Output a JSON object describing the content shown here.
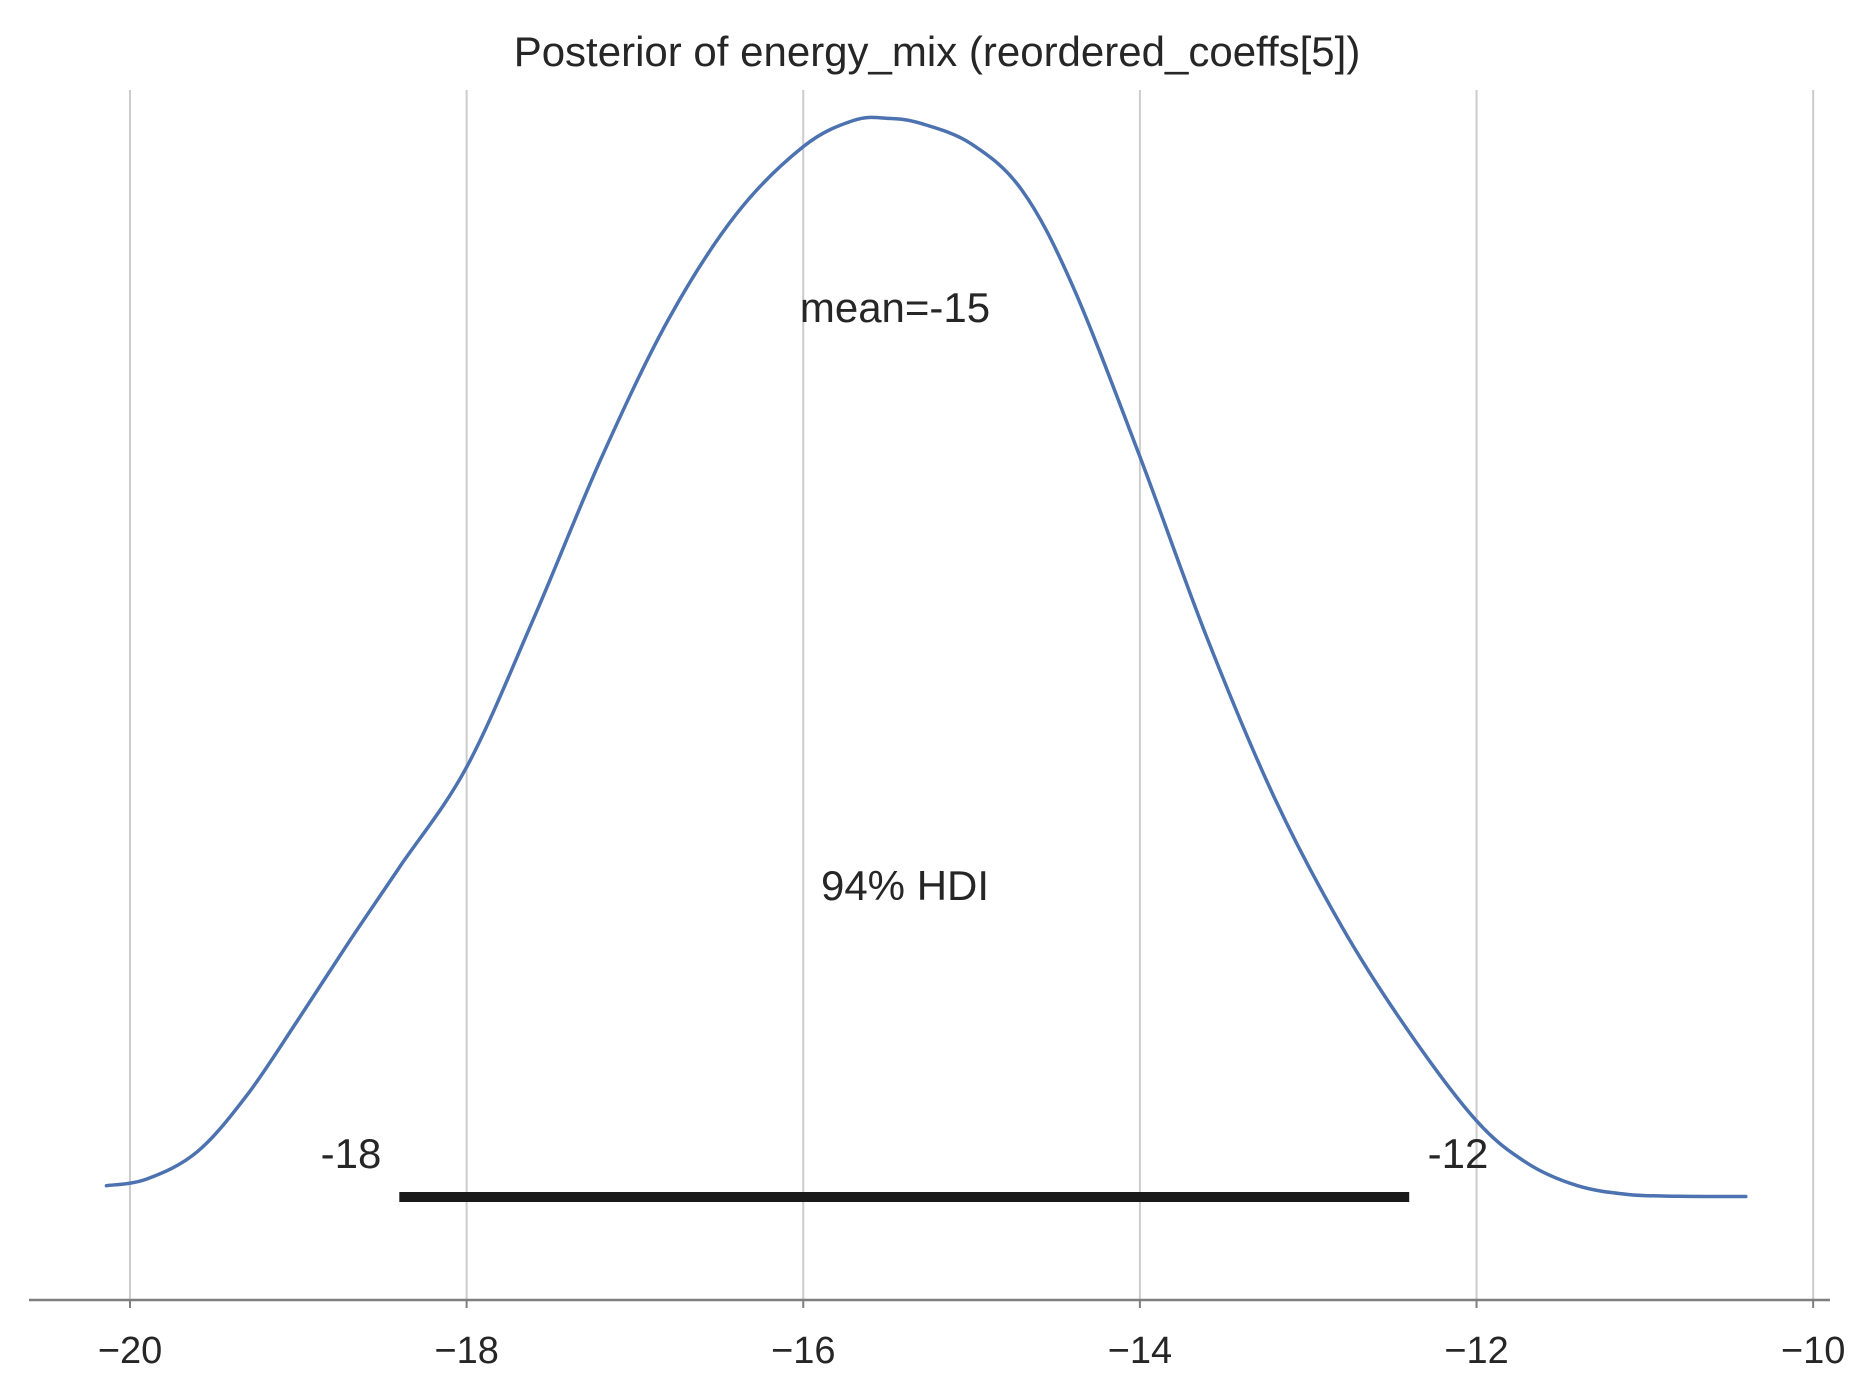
{
  "chart_data": {
    "type": "line",
    "title": "Posterior of energy_mix (reordered_coeffs[5])",
    "xlabel": "",
    "ylabel": "",
    "xlim": [
      -20.6,
      -9.9
    ],
    "ylim": [
      -0.02,
      0.215
    ],
    "grid": "vertical",
    "x_ticks": [
      -20,
      -18,
      -16,
      -14,
      -12,
      -10
    ],
    "x_tick_labels": [
      "−20",
      "−18",
      "−16",
      "−14",
      "−12",
      "−10"
    ],
    "colors": {
      "kde": "#4c72b0",
      "hdi": "#1a1a1a",
      "grid": "#cccccc",
      "axis": "#7f7f7f"
    },
    "kde": {
      "x": [
        -20.14,
        -19.9,
        -19.6,
        -19.3,
        -19.0,
        -18.7,
        -18.4,
        -18.0,
        -17.6,
        -17.2,
        -16.8,
        -16.4,
        -16.0,
        -15.7,
        -15.5,
        -15.3,
        -15.0,
        -14.7,
        -14.4,
        -14.0,
        -13.6,
        -13.2,
        -12.8,
        -12.4,
        -12.0,
        -11.7,
        -11.4,
        -11.1,
        -10.8,
        -10.4
      ],
      "y": [
        0.0022,
        0.0035,
        0.0088,
        0.02,
        0.0345,
        0.0495,
        0.064,
        0.0835,
        0.1125,
        0.1435,
        0.1705,
        0.1908,
        0.204,
        0.2091,
        0.2095,
        0.2085,
        0.2045,
        0.1955,
        0.177,
        0.1438,
        0.1085,
        0.0775,
        0.0525,
        0.032,
        0.0148,
        0.0066,
        0.0022,
        0.0005,
        0.00015,
        0.0001
      ]
    },
    "point_estimate": {
      "label": "mean=-15",
      "value": -15.5
    },
    "hdi": {
      "prob_label": "94% HDI",
      "lower": -18.4,
      "upper": -12.4,
      "lower_label": "-18",
      "upper_label": "-12"
    }
  }
}
